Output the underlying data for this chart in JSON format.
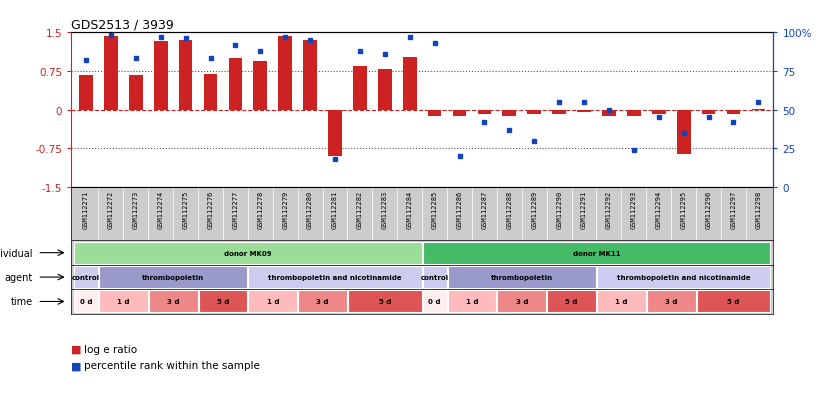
{
  "title": "GDS2513 / 3939",
  "samples": [
    "GSM112271",
    "GSM112272",
    "GSM112273",
    "GSM112274",
    "GSM112275",
    "GSM112276",
    "GSM112277",
    "GSM112278",
    "GSM112279",
    "GSM112280",
    "GSM112281",
    "GSM112282",
    "GSM112283",
    "GSM112284",
    "GSM112285",
    "GSM112286",
    "GSM112287",
    "GSM112288",
    "GSM112289",
    "GSM112290",
    "GSM112291",
    "GSM112292",
    "GSM112293",
    "GSM112294",
    "GSM112295",
    "GSM112296",
    "GSM112297",
    "GSM112298"
  ],
  "log_e_ratio": [
    0.68,
    1.42,
    0.67,
    1.32,
    1.35,
    0.69,
    1.0,
    0.95,
    1.42,
    1.35,
    -0.9,
    0.85,
    0.78,
    1.02,
    -0.12,
    -0.12,
    -0.08,
    -0.12,
    -0.08,
    -0.08,
    -0.05,
    -0.12,
    -0.12,
    -0.08,
    -0.85,
    -0.08,
    -0.08,
    0.02
  ],
  "percentile": [
    82,
    98,
    83,
    97,
    96,
    83,
    92,
    88,
    97,
    95,
    18,
    88,
    86,
    97,
    93,
    20,
    42,
    37,
    30,
    55,
    55,
    50,
    24,
    45,
    35,
    45,
    42,
    55
  ],
  "bar_color": "#cc2222",
  "dot_color": "#1144bb",
  "zero_line_color": "#cc2222",
  "dotted_line_color": "#555555",
  "individual_groups": [
    {
      "label": "donor MK09",
      "start": 0,
      "end": 13,
      "color": "#99dd99"
    },
    {
      "label": "donor MK11",
      "start": 14,
      "end": 27,
      "color": "#44bb66"
    }
  ],
  "agent_groups": [
    {
      "label": "control",
      "start": 0,
      "end": 0,
      "color": "#ccccee"
    },
    {
      "label": "thrombopoietin",
      "start": 1,
      "end": 6,
      "color": "#9999cc"
    },
    {
      "label": "thrombopoietin and nicotinamide",
      "start": 7,
      "end": 13,
      "color": "#ccccee"
    },
    {
      "label": "control",
      "start": 14,
      "end": 14,
      "color": "#ccccee"
    },
    {
      "label": "thrombopoietin",
      "start": 15,
      "end": 20,
      "color": "#9999cc"
    },
    {
      "label": "thrombopoietin and nicotinamide",
      "start": 21,
      "end": 27,
      "color": "#ccccee"
    }
  ],
  "time_groups": [
    {
      "label": "0 d",
      "start": 0,
      "end": 0,
      "color": "#ffeeee"
    },
    {
      "label": "1 d",
      "start": 1,
      "end": 2,
      "color": "#ffbbbb"
    },
    {
      "label": "3 d",
      "start": 3,
      "end": 4,
      "color": "#ee8888"
    },
    {
      "label": "5 d",
      "start": 5,
      "end": 6,
      "color": "#dd5555"
    },
    {
      "label": "1 d",
      "start": 7,
      "end": 8,
      "color": "#ffbbbb"
    },
    {
      "label": "3 d",
      "start": 9,
      "end": 10,
      "color": "#ee8888"
    },
    {
      "label": "5 d",
      "start": 11,
      "end": 13,
      "color": "#dd5555"
    },
    {
      "label": "0 d",
      "start": 14,
      "end": 14,
      "color": "#ffeeee"
    },
    {
      "label": "1 d",
      "start": 15,
      "end": 16,
      "color": "#ffbbbb"
    },
    {
      "label": "3 d",
      "start": 17,
      "end": 18,
      "color": "#ee8888"
    },
    {
      "label": "5 d",
      "start": 19,
      "end": 20,
      "color": "#dd5555"
    },
    {
      "label": "1 d",
      "start": 21,
      "end": 22,
      "color": "#ffbbbb"
    },
    {
      "label": "3 d",
      "start": 23,
      "end": 24,
      "color": "#ee8888"
    },
    {
      "label": "5 d",
      "start": 25,
      "end": 27,
      "color": "#dd5555"
    }
  ],
  "row_labels": [
    "individual",
    "agent",
    "time"
  ],
  "ylim": [
    -1.5,
    1.5
  ],
  "y_left_ticks": [
    -1.5,
    -0.75,
    0,
    0.75,
    1.5
  ],
  "y_left_labels": [
    "-1.5",
    "-0.75",
    "0",
    "0.75",
    "1.5"
  ],
  "y_right_ticks": [
    0,
    25,
    50,
    75,
    100
  ],
  "y_right_labels": [
    "0",
    "25",
    "50",
    "75",
    "100%"
  ],
  "background_color": "#ffffff",
  "xticklabel_bg": "#cccccc"
}
